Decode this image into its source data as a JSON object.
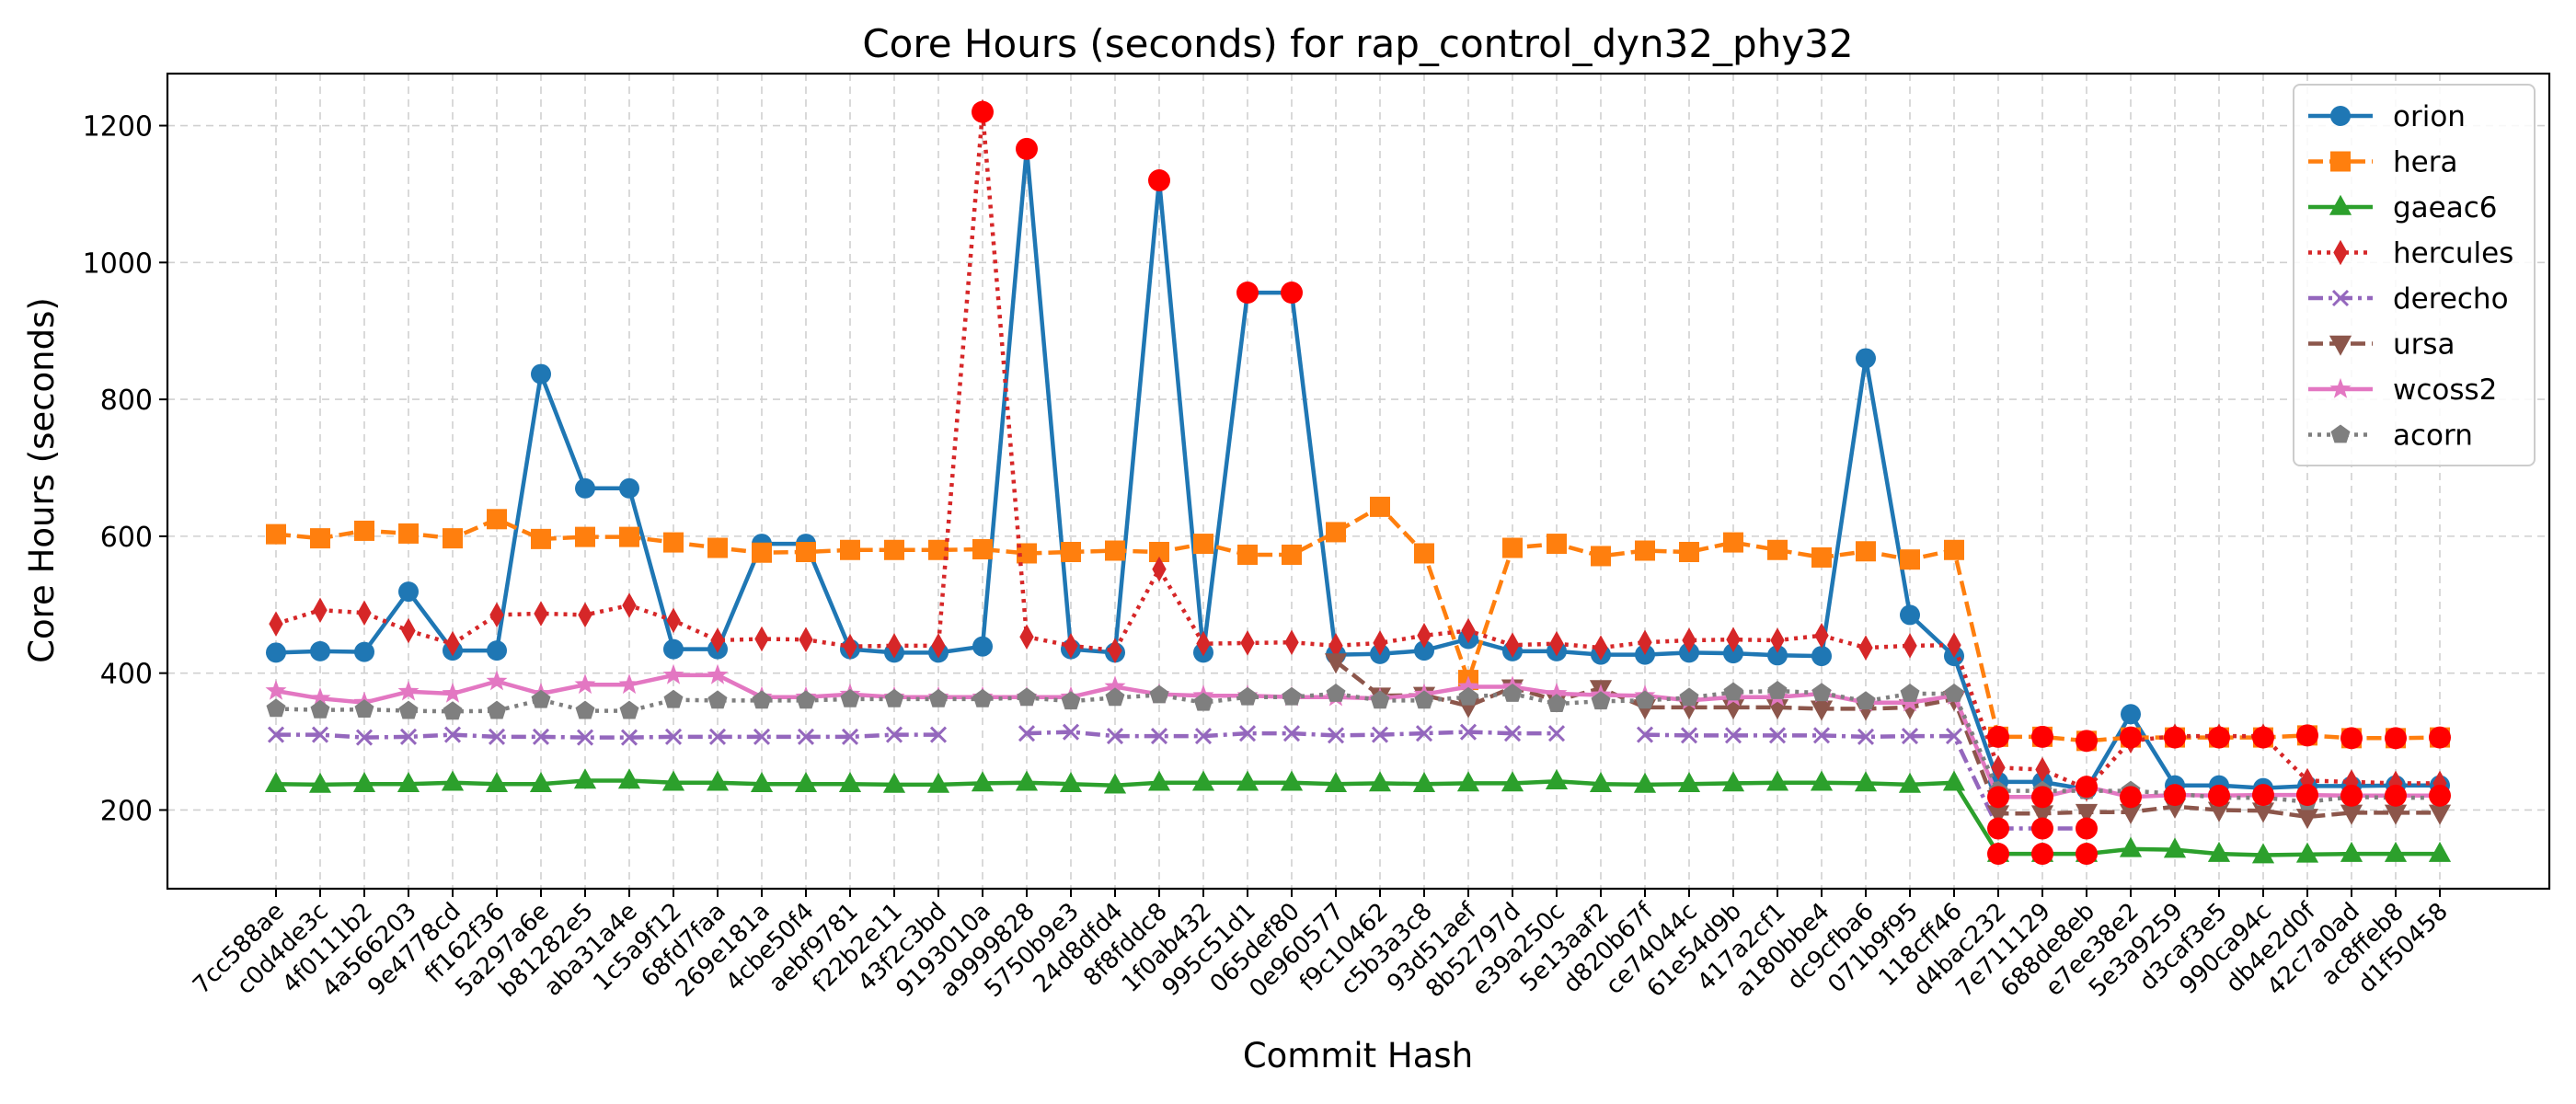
{
  "chart_data": {
    "type": "line",
    "title": "Core Hours (seconds) for rap_control_dyn32_phy32",
    "xlabel": "Commit Hash",
    "ylabel": "Core Hours (seconds)",
    "ylim": [
      85,
      1276
    ],
    "yticks": [
      200,
      400,
      600,
      800,
      1000,
      1200
    ],
    "grid": true,
    "legend_position": "top-right",
    "categories": [
      "7cc588ae",
      "c0d4de3c",
      "4f0111b2",
      "4a566203",
      "9e4778cd",
      "ff162f36",
      "5a297a6e",
      "b81282e5",
      "aba31a4e",
      "1c5a9f12",
      "68fd7faa",
      "269e181a",
      "4cbe50f4",
      "aebf9781",
      "f22b2e11",
      "43f2c3bd",
      "9193010a",
      "a9999828",
      "5750b9e3",
      "24d8dfd4",
      "8f8fddc8",
      "1f0ab432",
      "995c51d1",
      "065def80",
      "0e960577",
      "f9c10462",
      "c5b3a3c8",
      "93d51aef",
      "8b52797d",
      "e39a250c",
      "5e13aaf2",
      "d820b67f",
      "ce74044c",
      "61e54d9b",
      "417a2cf1",
      "a180bbe4",
      "dc9cfba6",
      "071b9f95",
      "118cff46",
      "d4bac232",
      "7e711129",
      "688de8eb",
      "e7ee38e2",
      "5e3a9259",
      "d3caf3e5",
      "990ca94c",
      "db4e2d0f",
      "42c7a0ad",
      "ac8ffeb8",
      "d1f50458"
    ],
    "series": [
      {
        "name": "orion",
        "color": "#1f77b4",
        "marker": "circle",
        "dash": "solid",
        "values": [
          430,
          432,
          431,
          519,
          433,
          433,
          837,
          670,
          670,
          435,
          435,
          589,
          589,
          435,
          430,
          430,
          439,
          1166,
          435,
          430,
          1120,
          430,
          956,
          956,
          427,
          428,
          433,
          450,
          432,
          432,
          427,
          427,
          430,
          429,
          426,
          425,
          860,
          485,
          425,
          241,
          241,
          230,
          340,
          236,
          236,
          232,
          235,
          235,
          236,
          236
        ],
        "highlight": [
          17,
          20,
          22,
          23
        ]
      },
      {
        "name": "hera",
        "color": "#ff7f0e",
        "marker": "square",
        "dash": "dashed",
        "values": [
          603,
          597,
          608,
          604,
          597,
          625,
          596,
          599,
          599,
          591,
          583,
          576,
          577,
          580,
          580,
          580,
          581,
          575,
          577,
          579,
          577,
          589,
          573,
          573,
          606,
          643,
          575,
          390,
          583,
          589,
          571,
          579,
          577,
          591,
          580,
          569,
          578,
          566,
          580,
          307,
          307,
          301,
          306,
          306,
          306,
          306,
          309,
          305,
          305,
          306
        ],
        "highlight": [
          39,
          40,
          41,
          42,
          43,
          44,
          45,
          46,
          47,
          48,
          49
        ]
      },
      {
        "name": "gaeac6",
        "color": "#2ca02c",
        "marker": "triangle-up",
        "dash": "solid",
        "values": [
          238,
          237,
          238,
          238,
          240,
          238,
          238,
          243,
          243,
          240,
          240,
          238,
          238,
          238,
          237,
          237,
          239,
          240,
          238,
          236,
          240,
          240,
          240,
          240,
          238,
          239,
          238,
          239,
          239,
          242,
          238,
          237,
          238,
          239,
          240,
          240,
          239,
          237,
          240,
          136,
          136,
          136,
          143,
          142,
          136,
          134,
          135,
          136,
          136,
          136
        ],
        "highlight": [
          39,
          40,
          41
        ]
      },
      {
        "name": "hercules",
        "color": "#d62728",
        "marker": "thin-diamond",
        "dash": "dotted",
        "values": [
          472,
          492,
          488,
          462,
          443,
          485,
          487,
          485,
          499,
          477,
          448,
          450,
          449,
          439,
          440,
          440,
          1220,
          453,
          440,
          433,
          552,
          443,
          444,
          445,
          440,
          444,
          455,
          462,
          441,
          443,
          437,
          445,
          448,
          449,
          448,
          455,
          437,
          440,
          441,
          262,
          259,
          231,
          301,
          308,
          308,
          308,
          243,
          241,
          239,
          239
        ],
        "highlight": [
          16
        ]
      },
      {
        "name": "derecho",
        "color": "#9467bd",
        "marker": "x",
        "dash": "dashdot",
        "values": [
          310,
          310,
          306,
          307,
          310,
          307,
          307,
          306,
          306,
          307,
          307,
          307,
          307,
          307,
          310,
          310,
          null,
          312,
          314,
          308,
          308,
          308,
          312,
          312,
          309,
          310,
          312,
          314,
          312,
          312,
          null,
          310,
          309,
          309,
          309,
          309,
          307,
          308,
          308,
          173,
          173,
          173,
          null,
          null,
          null,
          null,
          null,
          null,
          null,
          null
        ],
        "highlight": [
          39,
          40,
          41
        ]
      },
      {
        "name": "ursa",
        "color": "#8c564b",
        "marker": "triangle-down",
        "dash": "dashed",
        "values": [
          null,
          null,
          null,
          null,
          null,
          null,
          null,
          null,
          null,
          null,
          null,
          null,
          null,
          null,
          null,
          null,
          null,
          null,
          null,
          null,
          null,
          null,
          null,
          null,
          417,
          367,
          368,
          352,
          379,
          360,
          378,
          350,
          350,
          350,
          350,
          348,
          348,
          350,
          362,
          195,
          195,
          197,
          197,
          205,
          200,
          199,
          190,
          196,
          196,
          196
        ],
        "highlight": []
      },
      {
        "name": "wcoss2",
        "color": "#e377c2",
        "marker": "star",
        "dash": "solid",
        "values": [
          374,
          363,
          357,
          373,
          370,
          388,
          370,
          383,
          383,
          397,
          397,
          365,
          365,
          369,
          365,
          365,
          365,
          365,
          365,
          380,
          369,
          367,
          367,
          365,
          365,
          363,
          369,
          380,
          380,
          370,
          368,
          367,
          360,
          365,
          365,
          370,
          357,
          357,
          367,
          219,
          219,
          234,
          219,
          222,
          221,
          222,
          222,
          221,
          221,
          221
        ],
        "highlight": [
          39,
          40,
          41,
          42,
          43,
          44,
          45,
          46,
          47,
          48,
          49
        ]
      },
      {
        "name": "acorn",
        "color": "#7f7f7f",
        "marker": "pentagon",
        "dash": "dotted",
        "values": [
          348,
          346,
          347,
          345,
          344,
          345,
          361,
          345,
          345,
          361,
          360,
          360,
          360,
          362,
          362,
          362,
          362,
          364,
          359,
          364,
          368,
          357,
          365,
          365,
          370,
          360,
          360,
          365,
          370,
          355,
          359,
          360,
          364,
          372,
          374,
          371,
          359,
          370,
          370,
          228,
          228,
          228,
          228,
          224,
          218,
          218,
          212,
          219,
          218,
          218
        ],
        "highlight": []
      }
    ],
    "highlight_color": "#ff0000"
  }
}
